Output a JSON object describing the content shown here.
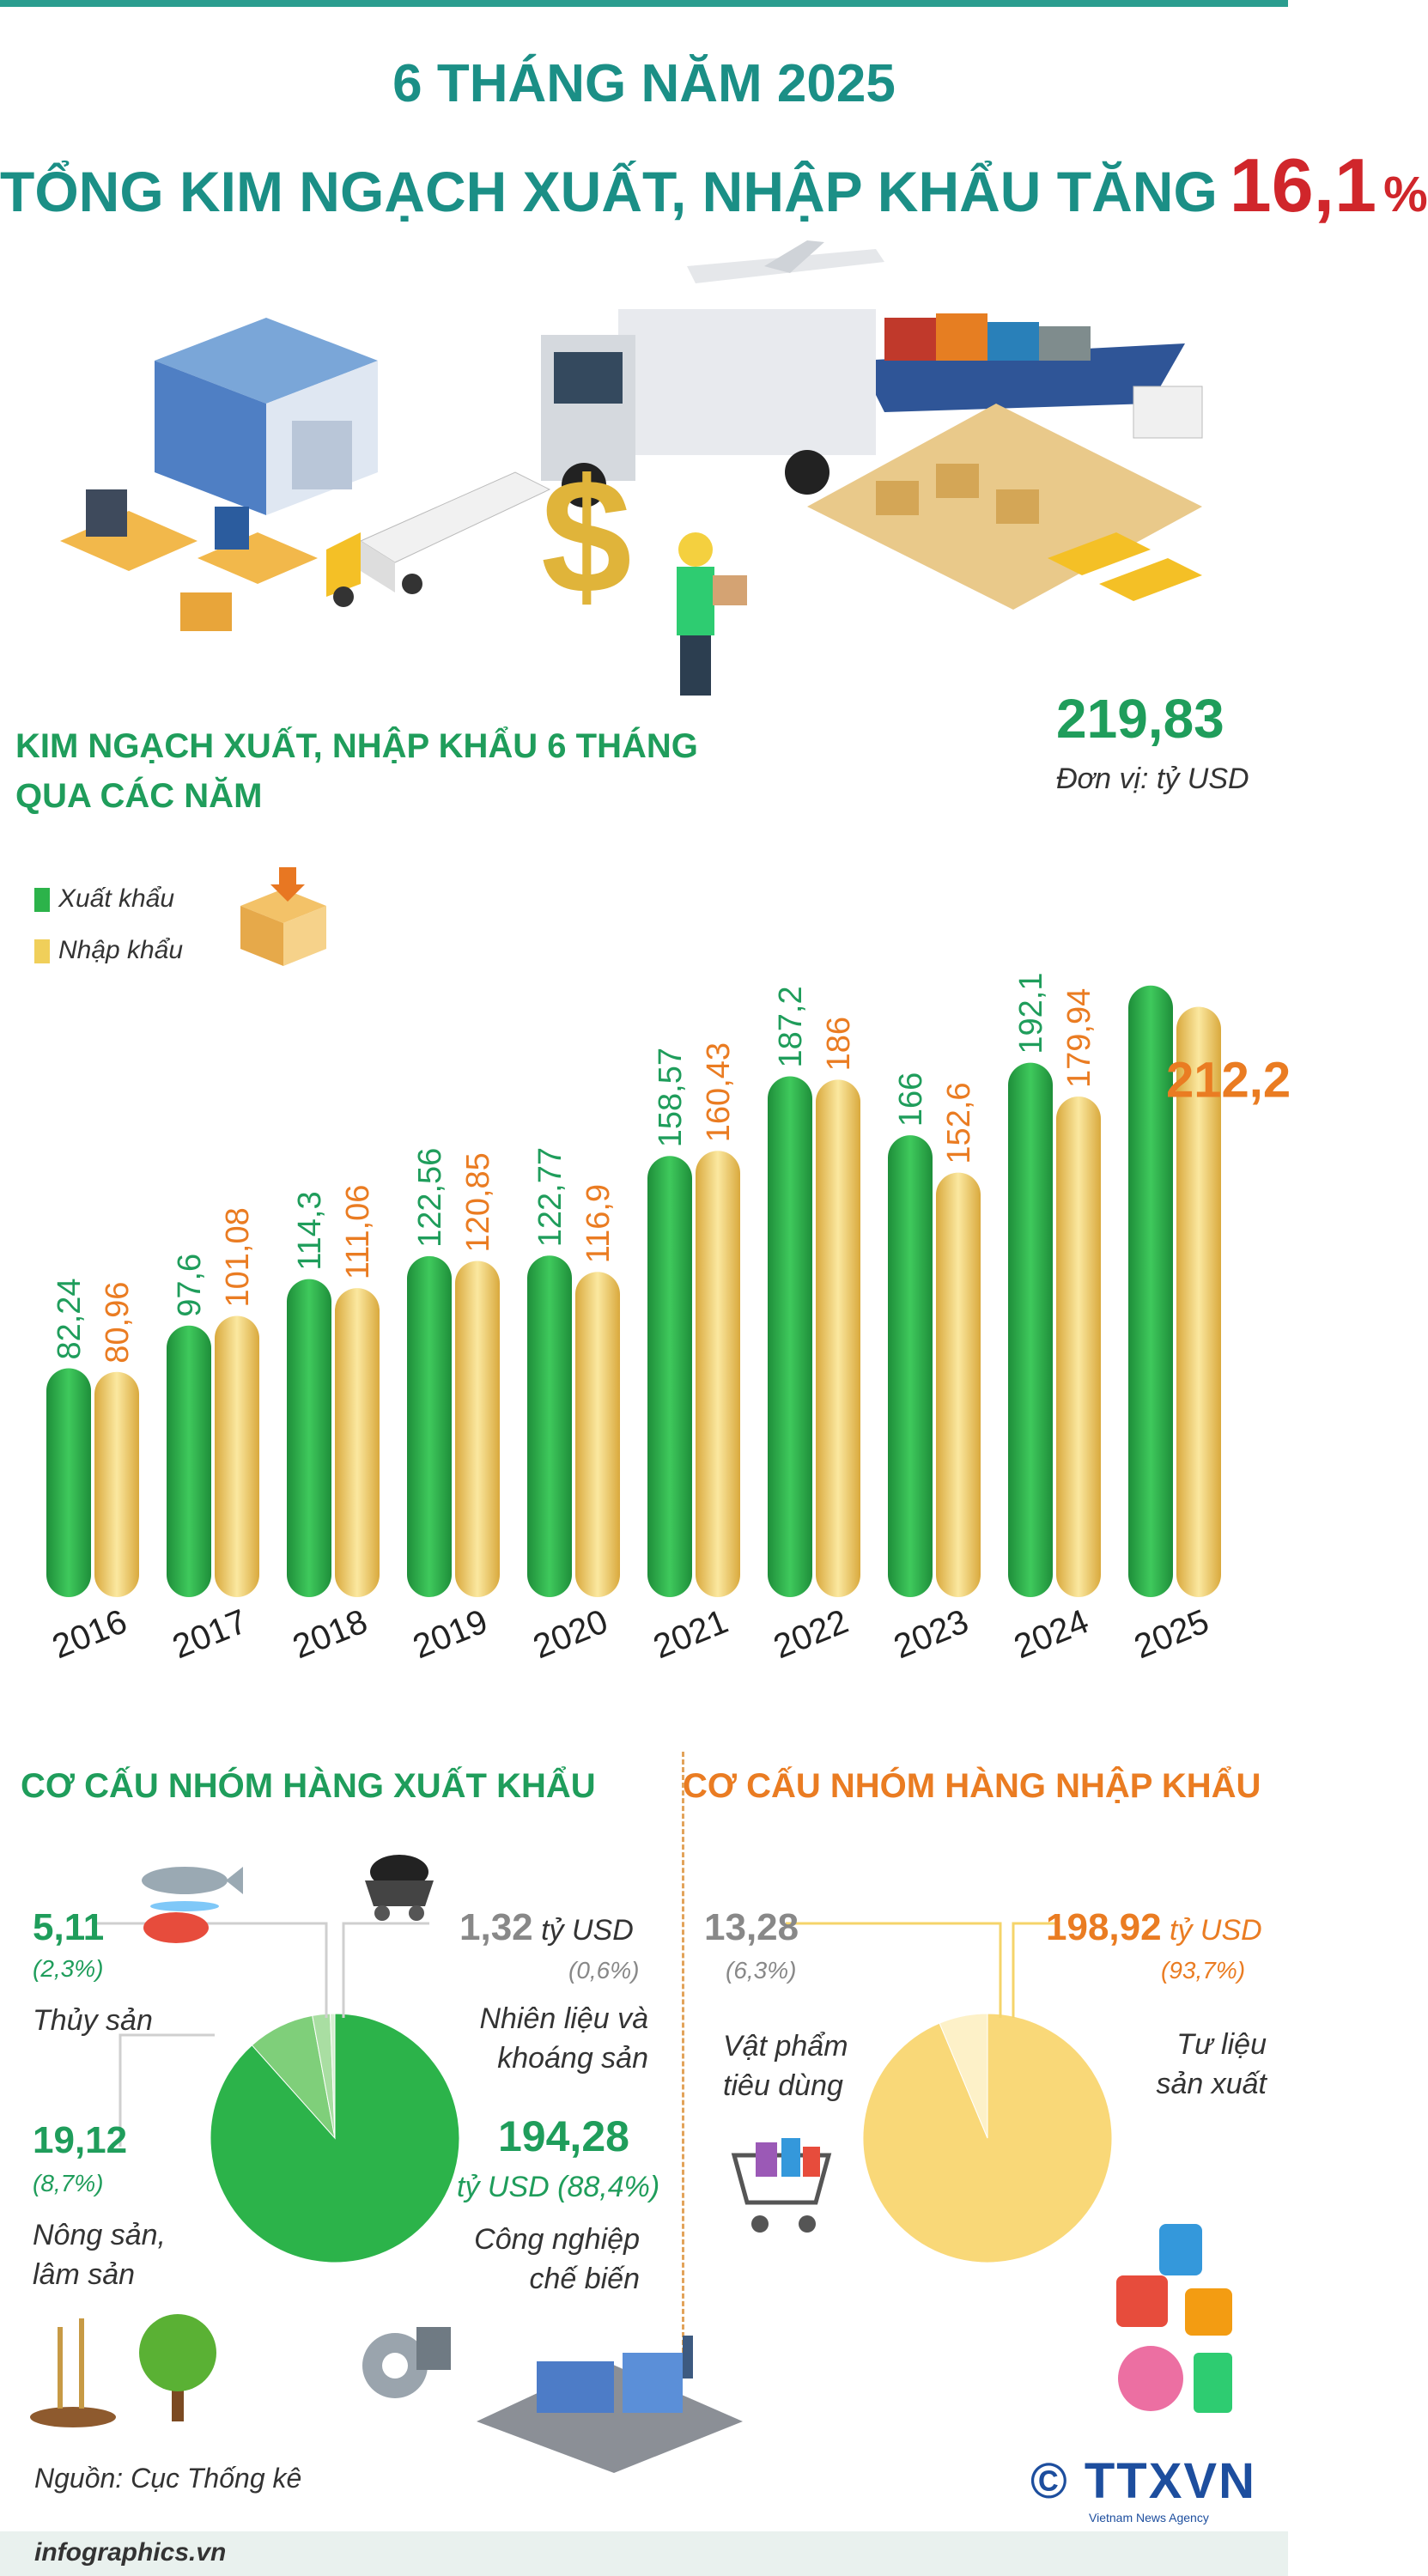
{
  "header": {
    "title_line1": "6 THÁNG NĂM 2025",
    "title_line2": "TỔNG KIM NGẠCH XUẤT, NHẬP KHẨU TĂNG",
    "highlight": "16,1",
    "percent": "%"
  },
  "colors": {
    "export_green": "#2cb34a",
    "import_gold": "#f0cf5a",
    "title_teal": "#1b8f86",
    "highlight_red": "#d0262b",
    "label_orange": "#ea7c22"
  },
  "chart_data": {
    "type": "bar",
    "title": "KIM NGẠCH XUẤT, NHẬP KHẨU 6 THÁNG QUA CÁC NĂM",
    "title_lines": [
      "KIM NGẠCH XUẤT, NHẬP KHẨU 6 THÁNG",
      "QUA CÁC NĂM"
    ],
    "unit": "Đơn vị: tỷ USD",
    "categories": [
      "2016",
      "2017",
      "2018",
      "2019",
      "2020",
      "2021",
      "2022",
      "2023",
      "2024",
      "2025"
    ],
    "value_labels": {
      "Xuất khẩu": [
        "82,24",
        "97,6",
        "114,3",
        "122,56",
        "122,77",
        "158,57",
        "187,2",
        "166",
        "192,1",
        "219,83"
      ],
      "Nhập khẩu": [
        "80,96",
        "101,08",
        "111,06",
        "120,85",
        "116,9",
        "160,43",
        "186",
        "152,6",
        "179,94",
        "212,2"
      ]
    },
    "series": [
      {
        "name": "Xuất khẩu",
        "values": [
          82.24,
          97.6,
          114.3,
          122.56,
          122.77,
          158.57,
          187.2,
          166,
          192.1,
          219.83
        ]
      },
      {
        "name": "Nhập khẩu",
        "values": [
          80.96,
          101.08,
          111.06,
          120.85,
          116.9,
          160.43,
          186,
          152.6,
          179.94,
          212.2
        ]
      }
    ],
    "ylim": [
      0,
      235
    ],
    "legend": "top-left"
  },
  "export_structure": {
    "title": "CƠ CẤU NHÓM HÀNG XUẤT KHẨU",
    "items": [
      {
        "value": "5,11",
        "share": "(2,3%)",
        "label": "Thủy sản",
        "pct": 2.3
      },
      {
        "value": "1,32",
        "unit": "tỷ USD",
        "share": "(0,6%)",
        "label": "Nhiên liệu và khoáng sản",
        "label_lines": [
          "Nhiên liệu và",
          "khoáng sản"
        ],
        "pct": 0.6
      },
      {
        "value": "19,12",
        "share": "(8,7%)",
        "label": "Nông sản, lâm sản",
        "label_lines": [
          "Nông sản,",
          "lâm sản"
        ],
        "pct": 8.7
      },
      {
        "value": "194,28",
        "share": "tỷ USD (88,4%)",
        "label": "Công nghiệp chế biến",
        "label_lines": [
          "Công nghiệp",
          "chế biến"
        ],
        "pct": 88.4
      }
    ]
  },
  "import_structure": {
    "title": "CƠ CẤU NHÓM HÀNG NHẬP KHẨU",
    "items": [
      {
        "value": "13,28",
        "share": "(6,3%)",
        "label": "Vật phẩm tiêu dùng",
        "label_lines": [
          "Vật phẩm",
          "tiêu dùng"
        ],
        "pct": 6.3
      },
      {
        "value": "198,92",
        "unit": "tỷ USD",
        "share": "(93,7%)",
        "label": "Tư liệu sản xuất",
        "label_lines": [
          "Tư liệu",
          "sản xuất"
        ],
        "pct": 93.7
      }
    ]
  },
  "footer": {
    "source": "Nguồn: Cục Thống kê",
    "site": "infographics.vn",
    "logo": "© TTXVN",
    "logo_sub": "Vietnam News Agency"
  }
}
